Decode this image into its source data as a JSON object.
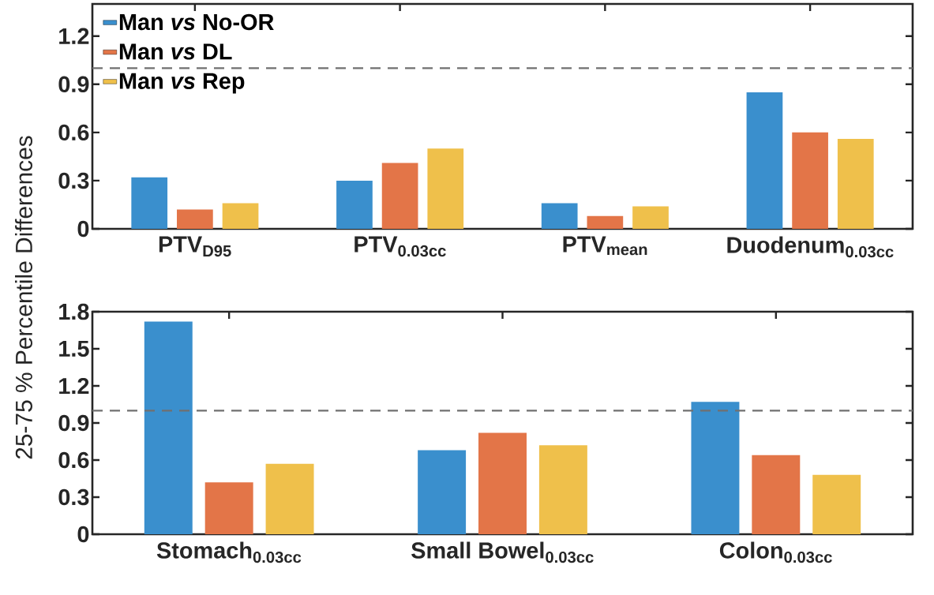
{
  "chart_data": [
    {
      "type": "bar",
      "ylabel": "25-75 % Percentile Differences",
      "categories": [
        "PTV$_{D95}$",
        "PTV$_{0.03cc}$",
        "PTV$_{mean}$",
        "Duodenum$_{0.03cc}$"
      ],
      "series": [
        {
          "name": "Man *vs* No-OR",
          "color": "#3a8fcd",
          "values": [
            0.32,
            0.3,
            0.16,
            0.85
          ]
        },
        {
          "name": "Man *vs* DL",
          "color": "#e37548",
          "values": [
            0.12,
            0.41,
            0.08,
            0.6
          ]
        },
        {
          "name": "Man *vs* Rep",
          "color": "#efc04b",
          "values": [
            0.16,
            0.5,
            0.14,
            0.56
          ]
        }
      ],
      "ylim": [
        0,
        1.4
      ],
      "yticks": [
        0,
        0.3,
        0.6,
        0.9,
        1.2
      ],
      "ref_lines": [
        {
          "axis": "y",
          "value": 1.0,
          "color": "#707070",
          "line_style": "dashed"
        }
      ],
      "legend": "top left"
    },
    {
      "type": "bar",
      "categories": [
        "Stomach$_{0.03cc}$",
        "Small Bowel$_{0.03cc}$",
        "Colon$_{0.03cc}$"
      ],
      "series": [
        {
          "color": "#3a8fcd",
          "values": [
            1.72,
            0.68,
            1.07
          ]
        },
        {
          "color": "#e37548",
          "values": [
            0.42,
            0.82,
            0.64
          ]
        },
        {
          "color": "#efc04b",
          "values": [
            0.57,
            0.72,
            0.48
          ]
        }
      ],
      "ylim": [
        0,
        1.8
      ],
      "yticks": [
        0,
        0.3,
        0.6,
        0.9,
        1.2,
        1.5,
        1.8
      ],
      "ref_lines": [
        {
          "axis": "y",
          "value": 1.0,
          "color": "#707070",
          "line_style": "dashed"
        }
      ],
      "legend": false
    }
  ]
}
